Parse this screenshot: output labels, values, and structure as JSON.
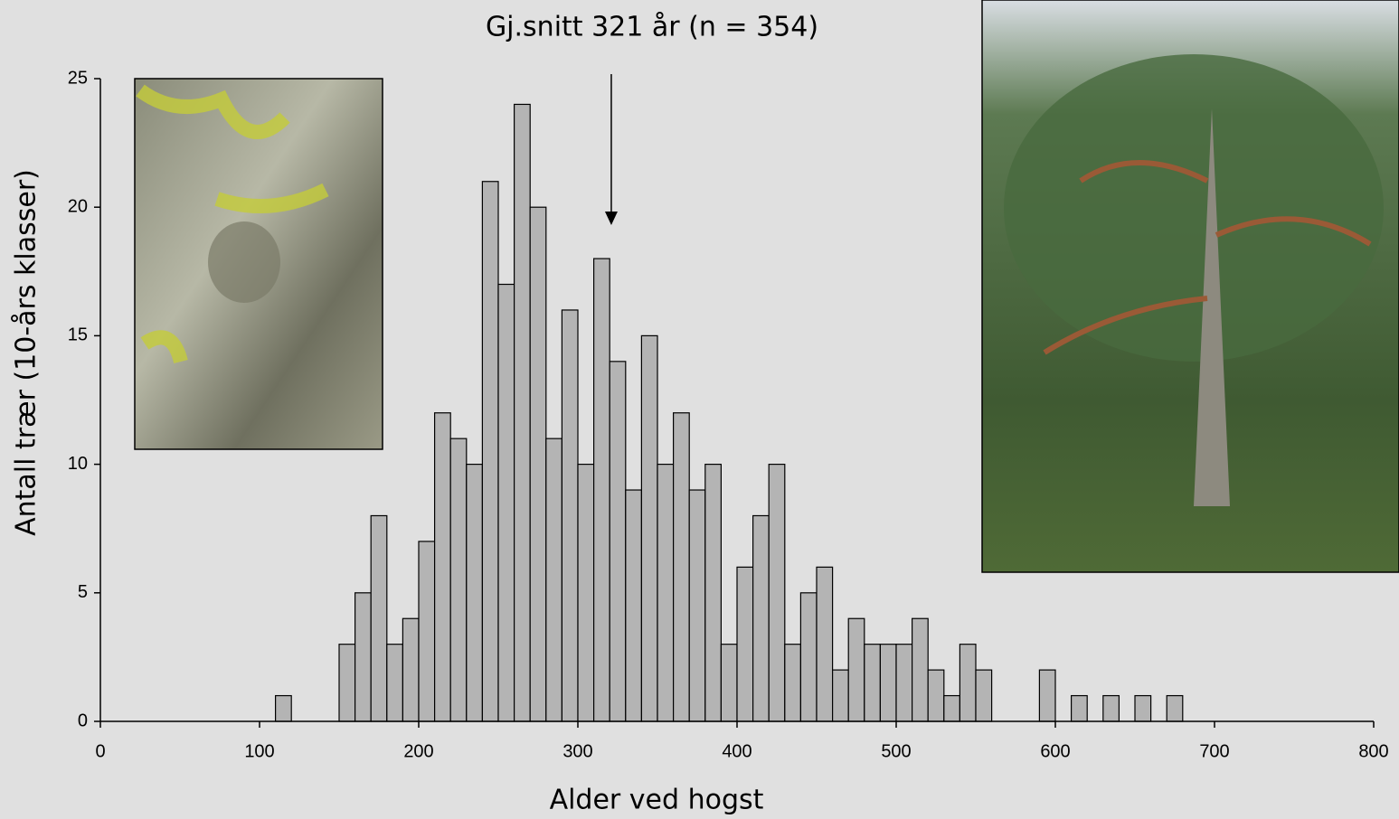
{
  "chart_data": {
    "type": "histogram",
    "title": "Gj.snitt 321 år (n = 354)",
    "mean": 321,
    "xlabel": "Alder ved hogst",
    "ylabel": "Antall trær (10-års klasser)",
    "bins": [
      110,
      120,
      130,
      140,
      150,
      160,
      170,
      180,
      190,
      200,
      210,
      220,
      230,
      240,
      250,
      260,
      270,
      280,
      290,
      300,
      310,
      320,
      330,
      340,
      350,
      360,
      370,
      380,
      390,
      400,
      410,
      420,
      430,
      440,
      450,
      460,
      470,
      480,
      490,
      500,
      510,
      520,
      530,
      540,
      550,
      560,
      570,
      580,
      590,
      600,
      610,
      620,
      630,
      640,
      650,
      660,
      670,
      680
    ],
    "counts": [
      1,
      0,
      0,
      0,
      3,
      5,
      8,
      3,
      4,
      7,
      12,
      11,
      10,
      21,
      17,
      24,
      20,
      11,
      16,
      10,
      18,
      14,
      9,
      15,
      10,
      12,
      9,
      10,
      3,
      6,
      8,
      10,
      3,
      5,
      6,
      2,
      4,
      3,
      3,
      3,
      4,
      2,
      1,
      3,
      2,
      0,
      0,
      0,
      2,
      0,
      1,
      0,
      1,
      0,
      1,
      0,
      1
    ],
    "color": "#b4b4b4",
    "xlim": [
      0,
      800
    ],
    "xticks": [
      0,
      100,
      200,
      300,
      400,
      500,
      600,
      700,
      800
    ],
    "ylim": [
      0,
      25
    ],
    "yticks": [
      0,
      5,
      10,
      15,
      20,
      25
    ]
  }
}
